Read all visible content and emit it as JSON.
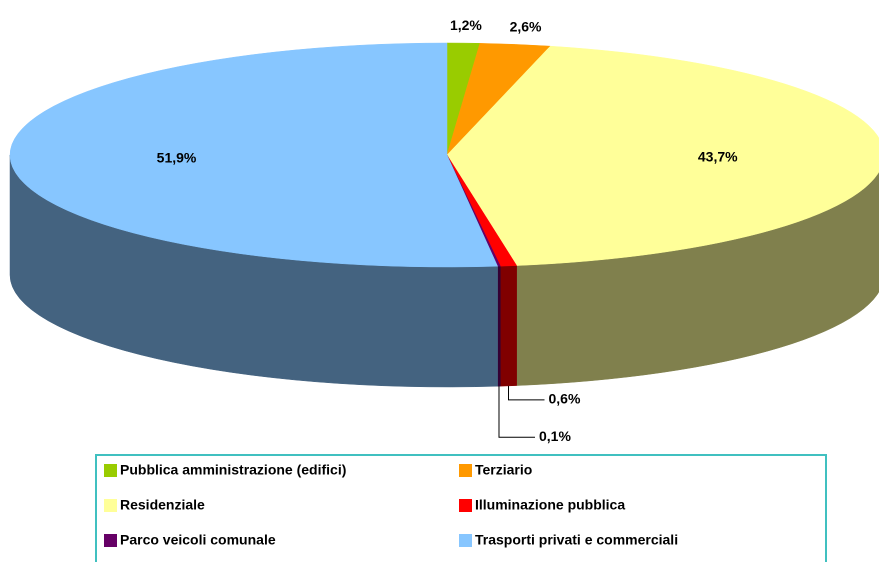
{
  "chart_data": {
    "type": "pie3d",
    "categories": [
      "Pubblica amministrazione (edifici)",
      "Terziario",
      "Residenziale",
      "Illuminazione pubblica",
      "Parco veicoli comunale",
      "Trasporti privati e commerciali"
    ],
    "values": [
      1.2,
      2.6,
      43.7,
      0.6,
      0.1,
      51.9
    ],
    "value_labels": [
      "1,2%",
      "2,6%",
      "43,7%",
      "0,6%",
      "0,1%",
      "51,9%"
    ],
    "colors": [
      "#99cc00",
      "#ff9900",
      "#ffff99",
      "#ff0000",
      "#660066",
      "#87c6ff"
    ],
    "legend": "bottom"
  }
}
